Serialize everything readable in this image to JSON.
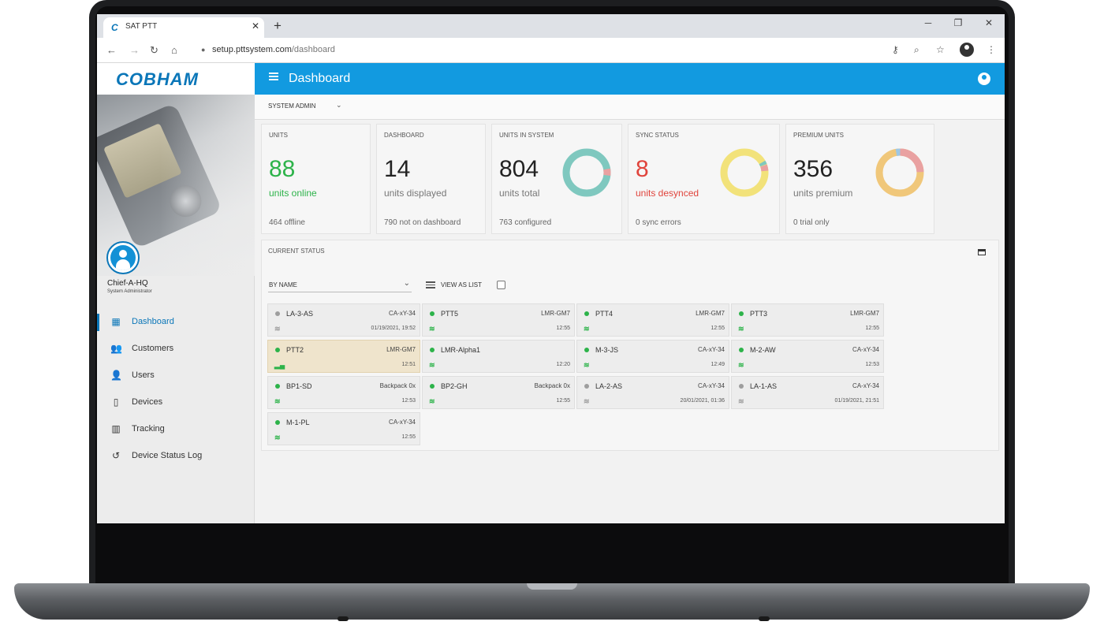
{
  "browser": {
    "tab_title": "SAT PTT",
    "tab_logo": "C",
    "tab_close": "✕",
    "new_tab": "+",
    "window_minimize": "─",
    "window_maximize": "❐",
    "window_close": "✕",
    "url_host": "setup.pttsystem.com",
    "url_path": "/dashboard",
    "nav_icons": [
      "back-icon",
      "forward-icon",
      "reload-icon",
      "home-icon"
    ],
    "toolbar_icons": [
      "key-icon",
      "zoom-icon",
      "star-icon",
      "profile-icon",
      "kebab-menu-icon"
    ]
  },
  "brand": {
    "name": "COBHAM"
  },
  "user": {
    "name": "Chief-A-HQ",
    "role": "System Administrator"
  },
  "sidebar": {
    "items": [
      {
        "label": "Dashboard",
        "icon": "dashboard-icon",
        "active": true
      },
      {
        "label": "Customers",
        "icon": "customers-icon",
        "active": false
      },
      {
        "label": "Users",
        "icon": "user-icon",
        "active": false
      },
      {
        "label": "Devices",
        "icon": "device-icon",
        "active": false
      },
      {
        "label": "Tracking",
        "icon": "map-icon",
        "active": false
      },
      {
        "label": "Device Status Log",
        "icon": "history-icon",
        "active": false
      }
    ]
  },
  "header": {
    "title": "Dashboard"
  },
  "toolbar": {
    "role": "SYSTEM ADMIN"
  },
  "kpis": {
    "units": {
      "title": "UNITS",
      "value": "88",
      "caption": "units online",
      "footer": "464 offline"
    },
    "dashboard": {
      "title": "DASHBOARD",
      "value": "14",
      "caption": "units displayed",
      "footer": "790 not on dashboard"
    },
    "system": {
      "title": "UNITS IN SYSTEM",
      "value": "804",
      "caption": "units total",
      "footer": "763 configured"
    },
    "sync": {
      "title": "SYNC STATUS",
      "value": "8",
      "caption": "units desynced",
      "footer": "0 sync errors"
    },
    "premium": {
      "title": "PREMIUM UNITS",
      "value": "356",
      "caption": "units premium",
      "footer": "0 trial only"
    }
  },
  "colors": {
    "accent": "#129ae0",
    "brand": "#0a76b8",
    "online": "#2db34a",
    "offline": "#9e9e9e",
    "desync": "#e0443c",
    "teal": "#7fc8bf",
    "yellow": "#f2e27a",
    "orange": "#f0c77a",
    "pink": "#e9a1a1",
    "blue_light": "#9dc7e4"
  },
  "current_status": {
    "title": "CURRENT STATUS",
    "sort_label": "BY NAME",
    "view_as_list_label": "VIEW AS LIST",
    "units": [
      {
        "name": "LA-3-AS",
        "type": "CA-xY-34",
        "time": "01/19/2021, 19:52",
        "status": "offline",
        "signal": "wifi",
        "selected": false
      },
      {
        "name": "PTT5",
        "type": "LMR-GM7",
        "time": "12:55",
        "status": "online",
        "signal": "wifi",
        "selected": false
      },
      {
        "name": "PTT4",
        "type": "LMR-GM7",
        "time": "12:55",
        "status": "online",
        "signal": "wifi",
        "selected": false
      },
      {
        "name": "PTT3",
        "type": "LMR-GM7",
        "time": "12:55",
        "status": "online",
        "signal": "wifi",
        "selected": false
      },
      {
        "name": "PTT2",
        "type": "LMR-GM7",
        "time": "12:51",
        "status": "online",
        "signal": "bars",
        "selected": true
      },
      {
        "name": "LMR-Alpha1",
        "type": "",
        "time": "12:20",
        "status": "online",
        "signal": "wifi",
        "selected": false
      },
      {
        "name": "M-3-JS",
        "type": "CA-xY-34",
        "time": "12:49",
        "status": "online",
        "signal": "wifi",
        "selected": false
      },
      {
        "name": "M-2-AW",
        "type": "CA-xY-34",
        "time": "12:53",
        "status": "online",
        "signal": "wifi",
        "selected": false
      },
      {
        "name": "BP1-SD",
        "type": "Backpack 0x",
        "time": "12:53",
        "status": "online",
        "signal": "wifi",
        "selected": false
      },
      {
        "name": "BP2-GH",
        "type": "Backpack 0x",
        "time": "12:55",
        "status": "online",
        "signal": "wifi",
        "selected": false
      },
      {
        "name": "LA-2-AS",
        "type": "CA-xY-34",
        "time": "20/01/2021, 01:36",
        "status": "offline",
        "signal": "wifi",
        "selected": false
      },
      {
        "name": "LA-1-AS",
        "type": "CA-xY-34",
        "time": "01/19/2021, 21:51",
        "status": "offline",
        "signal": "wifi",
        "selected": false
      },
      {
        "name": "M-1-PL",
        "type": "CA-xY-34",
        "time": "12:55",
        "status": "online",
        "signal": "wifi",
        "selected": false
      }
    ]
  }
}
